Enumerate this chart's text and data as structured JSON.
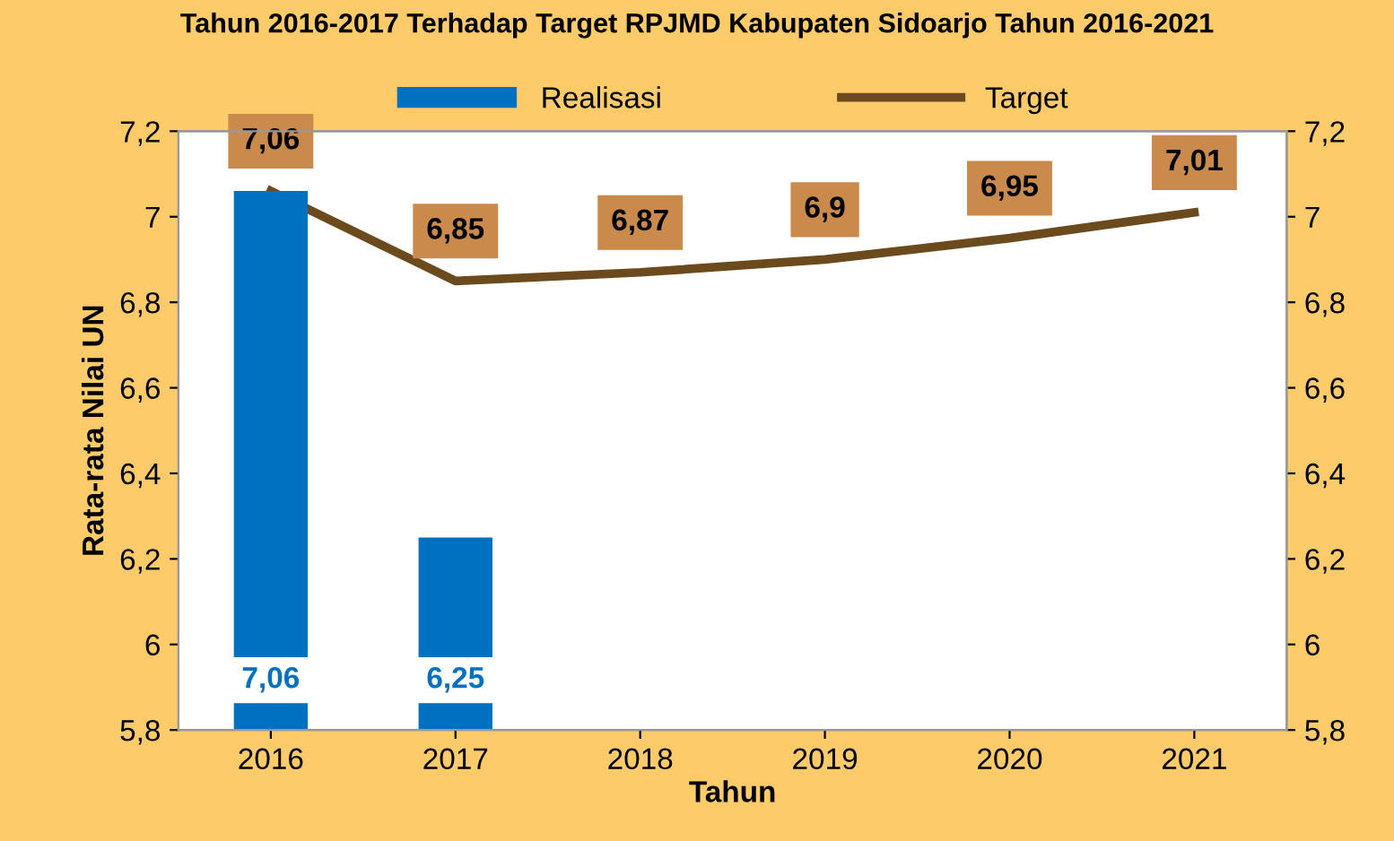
{
  "chart_data": {
    "type": "bar",
    "title": "Tahun 2016-2017 Terhadap Target RPJMD Kabupaten Sidoarjo Tahun 2016-2021",
    "xlabel": "Tahun",
    "ylabel": "Rata-rata Nilai UN",
    "categories": [
      "2016",
      "2017",
      "2018",
      "2019",
      "2020",
      "2021"
    ],
    "series": [
      {
        "name": "Realisasi",
        "color": "#0070c0",
        "values": [
          7.06,
          6.25,
          null,
          null,
          null,
          null
        ],
        "value_labels": [
          "7,06",
          "6,25",
          null,
          null,
          null,
          null
        ]
      },
      {
        "name": "Target",
        "type": "line",
        "axis": "y2",
        "color": "#6b4a1e",
        "values": [
          7.06,
          6.85,
          6.87,
          6.9,
          6.95,
          7.01
        ],
        "value_labels": [
          "7,06",
          "6,85",
          "6,87",
          "6,9",
          "6,95",
          "7,01"
        ]
      }
    ],
    "ylim": [
      5.8,
      7.2
    ],
    "yticks": [
      {
        "value": 5.8,
        "label": "5,8"
      },
      6,
      {
        "value": 6.2,
        "label": "6,2"
      },
      {
        "value": 6.4,
        "label": "6,4"
      },
      {
        "value": 6.6,
        "label": "6,6"
      },
      {
        "value": 6.8,
        "label": "6,8"
      },
      7,
      {
        "value": 7.2,
        "label": "7,2"
      }
    ],
    "y2lim": [
      5.8,
      7.2
    ],
    "y2ticks": [
      {
        "value": 5.8,
        "label": "5,8"
      },
      6,
      {
        "value": 6.2,
        "label": "6,2"
      },
      {
        "value": 6.4,
        "label": "6,4"
      },
      {
        "value": 6.6,
        "label": "6,6"
      },
      {
        "value": 6.8,
        "label": "6,8"
      },
      7,
      {
        "value": 7.2,
        "label": "7,2"
      }
    ],
    "grid": false,
    "legend": "top",
    "marker": "none",
    "line_style": "solid"
  }
}
